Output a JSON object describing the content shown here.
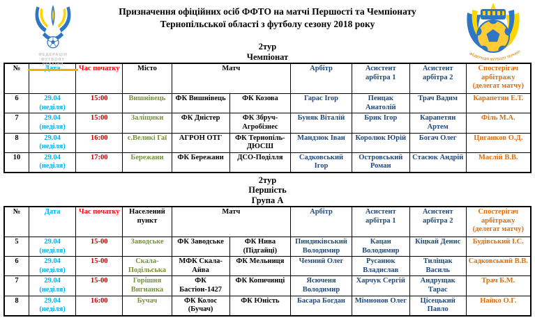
{
  "colors": {
    "date_cyan": "#00B0F0",
    "time_header_red": "#FF0000",
    "time_value_darkred": "#C00000",
    "venue_olive": "#76923C",
    "official_blue": "#1F497D",
    "observer_orange": "#E36C0A",
    "logo_blue": "#2E75C3",
    "logo_yellow": "#FFD500"
  },
  "icons": {
    "left_logo": "ffu-trident-ball-emblem",
    "right_logo": "ffto-round-ball-emblem"
  },
  "header": {
    "title_line1": "Призначення офіційних осіб ФФТО на матчі Першості та Чемпіонату",
    "title_line2": "Тернопільської області з футболу сезону 2018 року",
    "left_logo_caption_lines": [
      "ФЕДЕРАЦІЯ",
      "ФУТБОЛУ",
      "УКРАЇНИ"
    ],
    "right_logo_arc_text": "ФЕДЕРАЦІЯ ФУТБОЛУ ТЕРНОПІЛЬСЬКОЇ ОБЛАСТІ"
  },
  "sections": [
    {
      "heading_lines": [
        "2тур",
        "Чемпіонат"
      ],
      "columns": {
        "num": "№",
        "date": "Дата",
        "time": "Час початку",
        "venue": "Місто",
        "match": "Матч",
        "referee": "Арбітр",
        "assistant1": "Асистент арбітра 1",
        "assistant2": "Асистент арбітра 2",
        "observer": "Спостерігач арбітражу (делегат матчу)"
      },
      "rows": [
        {
          "num": "6",
          "date": "29.04",
          "weekday": "(неділя)",
          "time": "15:00",
          "venue": "Вишнівець",
          "home": "ФК Вишнівець",
          "away": "ФК Козова",
          "referee": "Гарас Ігор",
          "assistant1": "Пенцак Анатолій",
          "assistant2": "Трач Вадим",
          "observer": "Карапетян Е.Т."
        },
        {
          "num": "7",
          "date": "29.04",
          "weekday": "(неділя)",
          "time": "15:00",
          "venue": "Заліщики",
          "home": "ФК Дністер",
          "away": "ФК Збруч-Агробізнес",
          "referee": "Буняк Віталій",
          "assistant1": "Брик Ігор",
          "assistant2": "Карапетян Артем",
          "observer": "Філь М.А."
        },
        {
          "num": "8",
          "date": "29.04",
          "weekday": "(неділя)",
          "time": "16:00",
          "venue": "с.Великі Гаї",
          "home": "АГРОН ОТГ",
          "away": "ФК Тернопіль-ДЮСШ",
          "referee": "Мандзюк Іван",
          "assistant1": "Королюк Юрій",
          "assistant2": "Богач Олег",
          "observer": "Циганков О.Д."
        },
        {
          "num": "10",
          "date": "29.04",
          "weekday": "(неділя)",
          "time": "17:00",
          "venue": "Бережани",
          "home": "ФК Бережани",
          "away": "ДСО-Поділля",
          "referee": "Садковський Ігор",
          "assistant1": "Островський Роман",
          "assistant2": "Стасюк Андрій",
          "observer": "Маслій В.В."
        }
      ]
    },
    {
      "heading_lines": [
        "2тур",
        "Першість",
        "Група А"
      ],
      "columns": {
        "num": "№",
        "date": "Дата",
        "time": "Час початку",
        "venue": "Населений пункт",
        "match": "Матч",
        "referee": "Арбітр",
        "assistant1": "Асистент арбітра 1",
        "assistant2": "Асистент арбітра 2",
        "observer": "Спостерігач арбітражу (делегат матчу)"
      },
      "rows": [
        {
          "num": "5",
          "date": "29.04",
          "weekday": "(неділя)",
          "time": "15-00",
          "venue": "Заводське",
          "home": "ФК Заводське",
          "away": "ФК Нива (Підгайці)",
          "referee": "Пиндиківський Володимир",
          "assistant1": "Кацан Володимир",
          "assistant2": "Кіцкай Денис",
          "observer": "Будівський І.С."
        },
        {
          "num": "6",
          "date": "29.04",
          "weekday": "(неділя)",
          "time": "15-00",
          "venue": "Скала-Подільська",
          "home": "МФК Скала-Айва",
          "away": "ФК Мельниця",
          "referee": "Чемний Олег",
          "assistant1": "Русанюк Владислав",
          "assistant2": "Тиліщак Василь",
          "observer": "Садковський В.В."
        },
        {
          "num": "7",
          "date": "29.04",
          "weekday": "(неділя)",
          "time": "15-00",
          "venue": "Горішня Вигнанка",
          "home": "ФК Бастіон-1427",
          "away": "ФК Копичинці",
          "referee": "Ясюченя Володимир",
          "assistant1": "Харчук Сергій",
          "assistant2": "Андрущак Тарас",
          "observer": "Трач Б.М."
        },
        {
          "num": "8",
          "date": "29.04",
          "weekday": "(неділя)",
          "time": "16:00",
          "venue": "Бучач",
          "home": "ФК Колос (Бучач)",
          "away": "ФК Юність",
          "referee": "Басара Богдан",
          "assistant1": "Мімнонов Олег",
          "assistant2": "Цісецький Павло",
          "observer": "Найко О.Г."
        }
      ]
    }
  ]
}
